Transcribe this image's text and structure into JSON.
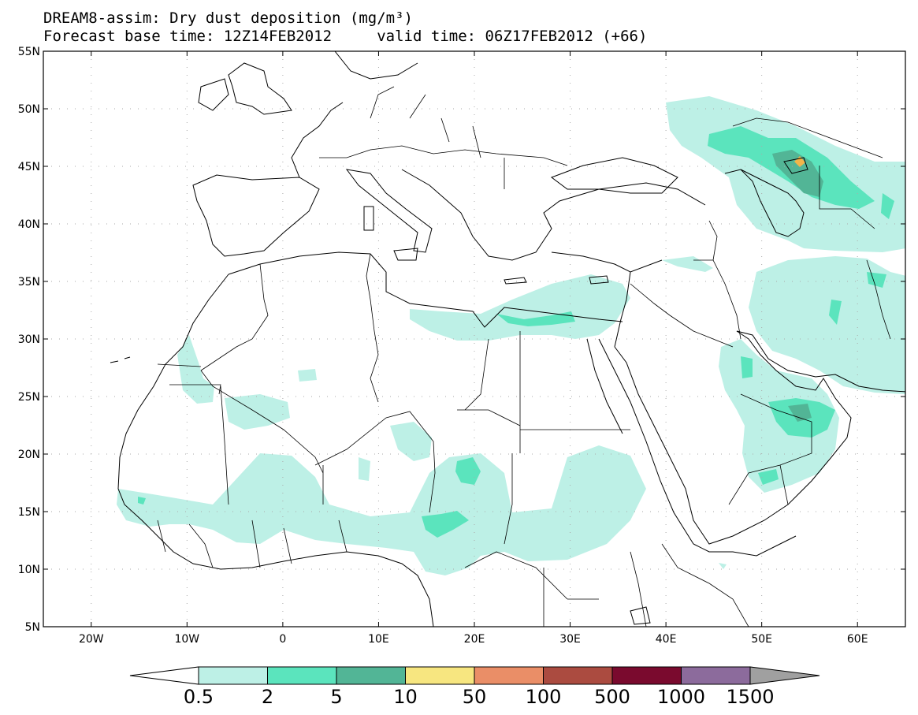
{
  "title_line1": "DREAM8-assim: Dry dust deposition (mg/m³)",
  "title_line2": "Forecast base time: 12Z14FEB2012     valid time: 06Z17FEB2012 (+66)",
  "map": {
    "lon_range": [
      -25,
      65
    ],
    "lat_range": [
      5,
      55
    ],
    "lat_ticks": [
      {
        "value": 55,
        "label": "55N"
      },
      {
        "value": 50,
        "label": "50N"
      },
      {
        "value": 45,
        "label": "45N"
      },
      {
        "value": 40,
        "label": "40N"
      },
      {
        "value": 35,
        "label": "35N"
      },
      {
        "value": 30,
        "label": "30N"
      },
      {
        "value": 25,
        "label": "25N"
      },
      {
        "value": 20,
        "label": "20N"
      },
      {
        "value": 15,
        "label": "15N"
      },
      {
        "value": 10,
        "label": "10N"
      },
      {
        "value": 5,
        "label": "5N"
      }
    ],
    "lon_ticks": [
      {
        "value": -20,
        "label": "20W"
      },
      {
        "value": -10,
        "label": "10W"
      },
      {
        "value": 0,
        "label": "0"
      },
      {
        "value": 10,
        "label": "10E"
      },
      {
        "value": 20,
        "label": "20E"
      },
      {
        "value": 30,
        "label": "30E"
      },
      {
        "value": 40,
        "label": "40E"
      },
      {
        "value": 50,
        "label": "50E"
      },
      {
        "value": 60,
        "label": "60E"
      }
    ],
    "grid": "dotted"
  },
  "colorbar": {
    "colors": [
      "#bdf0e6",
      "#5be4bd",
      "#52b596",
      "#f7e680",
      "#ea8e67",
      "#ab4b40",
      "#7a0a2e",
      "#8c6b9c"
    ],
    "under_color": "#ffffff",
    "over_color": "#a0a0a0",
    "labels": [
      "0.5",
      "2",
      "5",
      "10",
      "50",
      "100",
      "500",
      "1000",
      "1500"
    ]
  },
  "colors": {
    "light": "#bdf0e6",
    "mid": "#5be4bd",
    "dark": "#52b596",
    "orange": "#f2b54a",
    "coast": "#000000"
  }
}
